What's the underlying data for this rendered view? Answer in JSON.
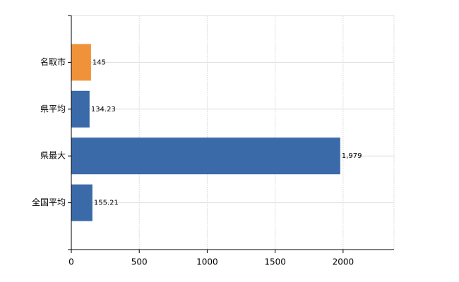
{
  "chart_data": {
    "type": "bar",
    "orientation": "horizontal",
    "categories": [
      "名取市",
      "県平均",
      "県最大",
      "全国平均"
    ],
    "values": [
      145,
      134.23,
      1979,
      155.21
    ],
    "value_labels": [
      "145",
      "134.23",
      "1,979",
      "155.21"
    ],
    "colors": [
      "#f0923a",
      "#3a6aa8",
      "#3a6aa8",
      "#3a6aa8"
    ],
    "xlim": [
      0,
      2375
    ],
    "xticks": [
      0,
      500,
      1000,
      1500,
      2000
    ],
    "grid": true
  }
}
